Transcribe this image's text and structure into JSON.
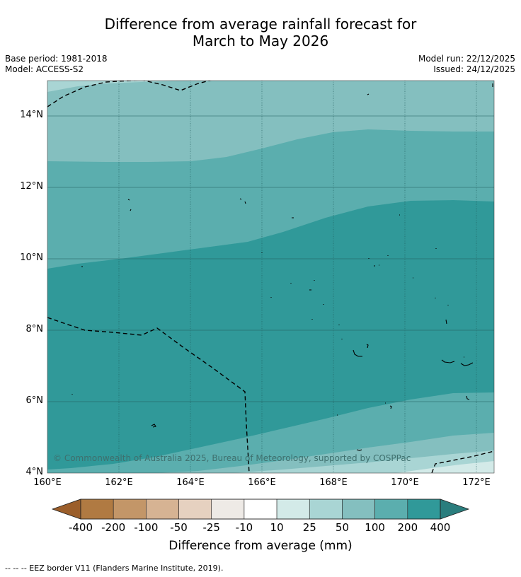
{
  "title_line1": "Difference from average rainfall forecast for",
  "title_line2": "March to May 2026",
  "base_period": "Base period: 1981-2018",
  "model": "Model: ACCESS-S2",
  "model_run": "Model run: 22/12/2025",
  "issued": "Issued: 24/12/2025",
  "lat_labels": [
    "14°N",
    "12°N",
    "10°N",
    "8°N",
    "6°N",
    "4°N"
  ],
  "lon_labels": [
    "160°E",
    "162°E",
    "164°E",
    "166°E",
    "168°E",
    "170°E",
    "172°E"
  ],
  "copyright": "© Commonwealth of Australia 2025, Bureau of Meteorology, supported by COSPPac",
  "colorbar": {
    "labels": [
      "-400",
      "-200",
      "-100",
      "-50",
      "-25",
      "-10",
      "10",
      "25",
      "50",
      "100",
      "200",
      "400"
    ],
    "colors": [
      "#9b5e2a",
      "#b07a42",
      "#c39668",
      "#d6b393",
      "#e6d1c0",
      "#eeeae6",
      "#ffffff",
      "#d3eae8",
      "#a9d5d4",
      "#84bfbf",
      "#5baeae",
      "#309999",
      "#2a7d7d"
    ],
    "title": "Difference from average (mm)"
  },
  "legend_text": "--  --  -- EEZ border V11 (Flanders Marine Institute, 2019)."
}
